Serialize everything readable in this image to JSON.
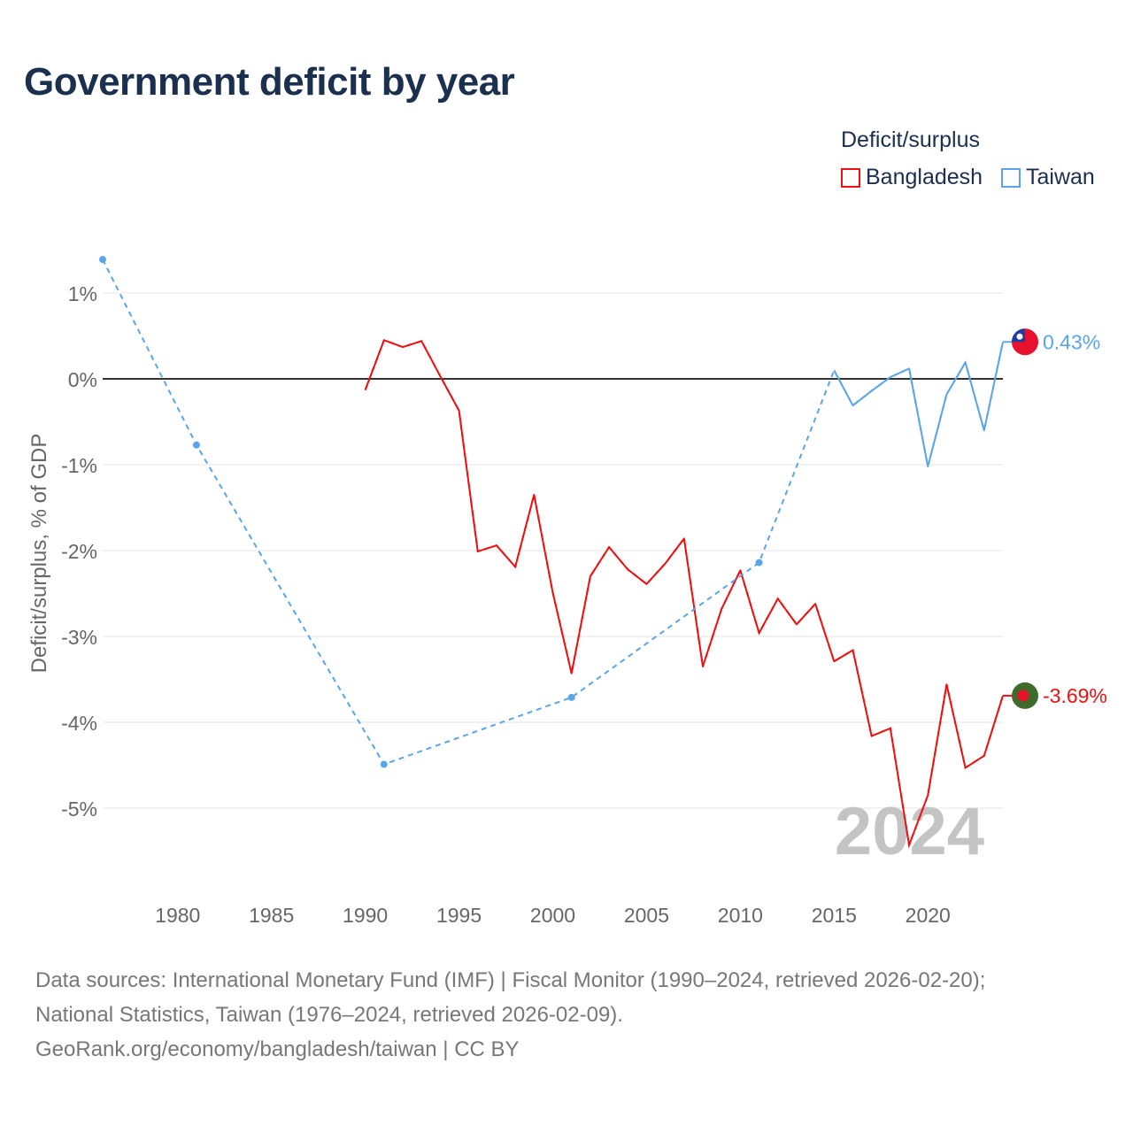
{
  "chart_data": {
    "type": "line",
    "title": "Government deficit by year",
    "ylabel": "Deficit/surplus, % of GDP",
    "xlabel": "",
    "xlim": [
      1976,
      2024
    ],
    "ylim": [
      -5.9,
      1.5
    ],
    "x_ticks": [
      1980,
      1985,
      1990,
      1995,
      2000,
      2005,
      2010,
      2015,
      2020
    ],
    "x_tick_labels": [
      "1980",
      "1985",
      "1990",
      "1995",
      "2000",
      "2005",
      "2010",
      "2015",
      "2020"
    ],
    "y_ticks": [
      1,
      0,
      -1,
      -2,
      -3,
      -4,
      -5
    ],
    "y_tick_labels": [
      "1%",
      "0%",
      "-1%",
      "-2%",
      "-3%",
      "-4%",
      "-5%"
    ],
    "grid": true,
    "legend_title": "Deficit/surplus",
    "legend_position": "top-right",
    "year_watermark": "2024",
    "series": [
      {
        "name": "Bangladesh",
        "color": "#ee1111",
        "end_label": "-3.69%",
        "x": [
          1990,
          1991,
          1992,
          1993,
          1994,
          1995,
          1996,
          1997,
          1998,
          1999,
          2000,
          2001,
          2002,
          2003,
          2004,
          2005,
          2006,
          2007,
          2008,
          2009,
          2010,
          2011,
          2012,
          2013,
          2014,
          2015,
          2016,
          2017,
          2018,
          2019,
          2020,
          2021,
          2022,
          2023,
          2024
        ],
        "y": [
          -0.13,
          0.45,
          0.37,
          0.44,
          0.03,
          -0.37,
          -2.01,
          -1.94,
          -2.19,
          -1.35,
          -2.49,
          -3.43,
          -2.3,
          -1.96,
          -2.22,
          -2.39,
          -2.15,
          -1.86,
          -3.35,
          -2.68,
          -2.23,
          -2.96,
          -2.56,
          -2.86,
          -2.62,
          -3.29,
          -3.16,
          -4.16,
          -4.07,
          -5.43,
          -4.85,
          -3.56,
          -4.53,
          -4.39,
          -3.69
        ]
      },
      {
        "name": "Taiwan",
        "color": "#5aa5e8",
        "end_label": "0.43%",
        "x": [
          1976,
          1981,
          1991,
          2001,
          2011,
          2015,
          2016,
          2017,
          2018,
          2019,
          2020,
          2021,
          2022,
          2023,
          2024
        ],
        "y": [
          1.39,
          -0.77,
          -4.49,
          -3.71,
          -2.14,
          0.1,
          -0.31,
          -0.14,
          0.02,
          0.12,
          -1.02,
          -0.18,
          0.19,
          -0.6,
          0.43
        ]
      }
    ]
  },
  "footer": {
    "line1": "Data sources: International Monetary Fund (IMF) | Fiscal Monitor (1990–2024, retrieved 2026-02-20);",
    "line2": "National Statistics, Taiwan (1976–2024, retrieved 2026-02-09).",
    "line3": "GeoRank.org/economy/bangladesh/taiwan | CC BY"
  }
}
